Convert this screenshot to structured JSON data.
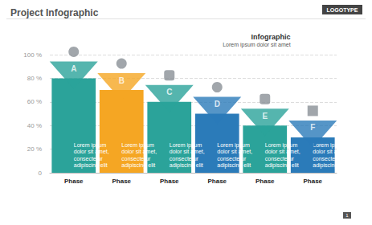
{
  "chart_data": {
    "type": "bar",
    "title": "Project Infographic",
    "logo": "LOGOTYPE",
    "heading": "Infographic",
    "subtitle": "Lorem ipsum dolor sit amet",
    "categories": [
      "Phase",
      "Phase",
      "Phase",
      "Phase",
      "Phase",
      "Phase"
    ],
    "values": [
      80,
      70,
      60,
      50,
      40,
      30
    ],
    "letters": [
      "A",
      "B",
      "C",
      "D",
      "E",
      "F"
    ],
    "descriptions": [
      "Lorem ipsum dolor sit amet, consectetur adipiscing elit",
      "Lorem ipsum dolor sit amet, consectetur adipiscing elit",
      "Lorem ipsum dolor sit amet, consectetur adipiscing elit",
      "Lorem ipsum dolor sit amet, consectetur adipiscing elit",
      "Lorem ipsum dolor sit amet, consectetur adipiscing elit",
      "Lorem ipsum dolor sit amet, consectetur adipiscing elit"
    ],
    "colors": [
      "#2ba39a",
      "#f5a623",
      "#2ba39a",
      "#2b7bb9",
      "#2ba39a",
      "#2b7bb9"
    ],
    "ylim": [
      0,
      100
    ],
    "yticks": [
      0,
      {
        "value": 20,
        "label": "20 %"
      },
      {
        "value": 40,
        "label": "40 %"
      },
      {
        "value": 60,
        "label": "60 %"
      },
      {
        "value": 80,
        "label": "80 %"
      },
      {
        "value": 100,
        "label": "100 %"
      }
    ],
    "grid": true,
    "page": "1"
  }
}
